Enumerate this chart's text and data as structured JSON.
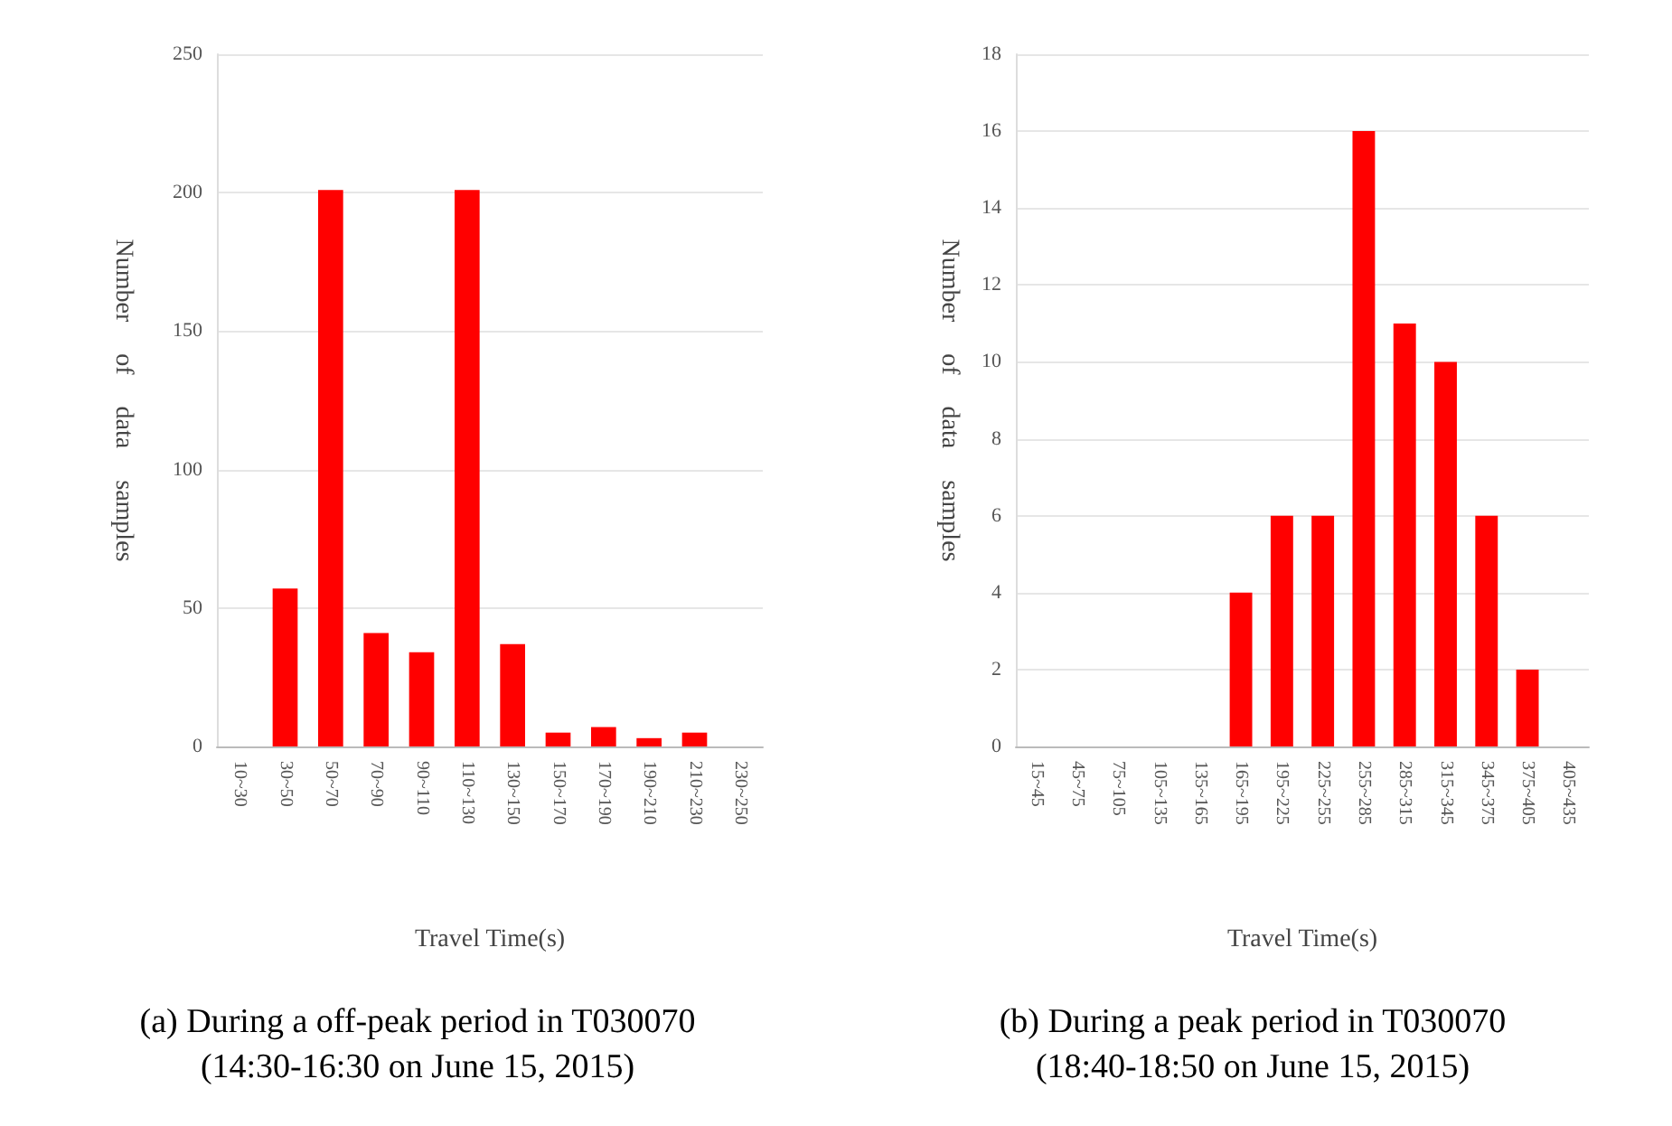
{
  "chart_data": [
    {
      "type": "bar",
      "title": "(a) During a off-peak period in T030070",
      "subtitle": "(14:30-16:30 on June 15, 2015)",
      "xlabel": "Travel Time(s)",
      "ylabel": "Number     of     data     samples",
      "categories": [
        "10~30",
        "30~50",
        "50~70",
        "70~90",
        "90~110",
        "110~130",
        "130~150",
        "150~170",
        "170~190",
        "190~210",
        "210~230",
        "230~250"
      ],
      "values": [
        0,
        57,
        201,
        41,
        34,
        201,
        37,
        5,
        7,
        3,
        5,
        0
      ],
      "color": "#ff0000",
      "ylim": [
        0,
        250
      ],
      "yticks": [
        0,
        50,
        100,
        150,
        200,
        250
      ],
      "grid": "y"
    },
    {
      "type": "bar",
      "title": "(b) During a peak period in T030070",
      "subtitle": "(18:40-18:50 on June 15, 2015)",
      "xlabel": "Travel Time(s)",
      "ylabel": "Number     of     data     samples",
      "categories": [
        "15~45",
        "45~75",
        "75~105",
        "105~135",
        "135~165",
        "165~195",
        "195~225",
        "225~255",
        "255~285",
        "285~315",
        "315~345",
        "345~375",
        "375~405",
        "405~435"
      ],
      "values": [
        0,
        0,
        0,
        0,
        0,
        4,
        6,
        6,
        16,
        11,
        10,
        6,
        2,
        0
      ],
      "color": "#ff0000",
      "ylim": [
        0,
        18
      ],
      "yticks": [
        0,
        2,
        4,
        6,
        8,
        10,
        12,
        14,
        16,
        18
      ],
      "grid": "y"
    }
  ]
}
